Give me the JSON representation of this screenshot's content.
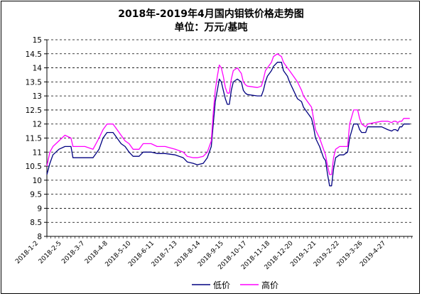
{
  "chart_data": {
    "type": "line",
    "title": "2018年-2019年4月国内钼铁价格走势图",
    "subtitle": "单位：万元/基吨",
    "ylim": [
      8,
      15
    ],
    "yticks": [
      "8",
      "8.5",
      "9",
      "9.5",
      "10",
      "10.5",
      "11",
      "11.5",
      "12",
      "12.5",
      "13",
      "13.5",
      "14",
      "14.5",
      "15"
    ],
    "xtick_labels": [
      "2018-1-2",
      "2018-2-5",
      "2018-3-7",
      "2018-4-8",
      "2018-5-10",
      "2018-6-11",
      "2018-7-13",
      "2018-8-14",
      "2018-9-15",
      "2018-10-17",
      "2018-11-18",
      "2018-12-20",
      "2019-1-21",
      "2019-2-22",
      "2019-3-26",
      "2019-4-27"
    ],
    "grid": true,
    "legend": "bottom",
    "series": [
      {
        "name": "低价",
        "color": "#000080",
        "points": [
          [
            0,
            10.2
          ],
          [
            3,
            10.6
          ],
          [
            6,
            10.9
          ],
          [
            12,
            11.1
          ],
          [
            18,
            11.2
          ],
          [
            24,
            11.2
          ],
          [
            26,
            10.8
          ],
          [
            38,
            10.8
          ],
          [
            46,
            10.8
          ],
          [
            52,
            11.1
          ],
          [
            56,
            11.5
          ],
          [
            60,
            11.7
          ],
          [
            66,
            11.7
          ],
          [
            70,
            11.5
          ],
          [
            74,
            11.3
          ],
          [
            78,
            11.2
          ],
          [
            82,
            11.0
          ],
          [
            86,
            10.85
          ],
          [
            92,
            10.85
          ],
          [
            96,
            11.0
          ],
          [
            104,
            11.0
          ],
          [
            110,
            10.95
          ],
          [
            118,
            10.95
          ],
          [
            128,
            10.9
          ],
          [
            136,
            10.8
          ],
          [
            140,
            10.65
          ],
          [
            146,
            10.6
          ],
          [
            150,
            10.55
          ],
          [
            156,
            10.6
          ],
          [
            160,
            10.8
          ],
          [
            164,
            11.2
          ],
          [
            166,
            12.0
          ],
          [
            168,
            12.8
          ],
          [
            170,
            13.2
          ],
          [
            172,
            13.6
          ],
          [
            174,
            13.5
          ],
          [
            176,
            13.2
          ],
          [
            178,
            12.9
          ],
          [
            180,
            12.7
          ],
          [
            182,
            12.7
          ],
          [
            184,
            13.2
          ],
          [
            186,
            13.5
          ],
          [
            190,
            13.6
          ],
          [
            194,
            13.5
          ],
          [
            196,
            13.2
          ],
          [
            198,
            13.1
          ],
          [
            200,
            13.05
          ],
          [
            210,
            13.0
          ],
          [
            214,
            13.0
          ],
          [
            216,
            13.2
          ],
          [
            218,
            13.5
          ],
          [
            220,
            13.7
          ],
          [
            224,
            13.9
          ],
          [
            226,
            14.05
          ],
          [
            230,
            14.2
          ],
          [
            234,
            14.2
          ],
          [
            236,
            13.9
          ],
          [
            240,
            13.7
          ],
          [
            242,
            13.5
          ],
          [
            246,
            13.2
          ],
          [
            250,
            12.9
          ],
          [
            254,
            12.8
          ],
          [
            256,
            12.6
          ],
          [
            260,
            12.4
          ],
          [
            264,
            12.2
          ],
          [
            266,
            11.9
          ],
          [
            268,
            11.5
          ],
          [
            272,
            11.2
          ],
          [
            274,
            11.0
          ],
          [
            276,
            10.8
          ],
          [
            278,
            10.7
          ],
          [
            280,
            10.2
          ],
          [
            282,
            9.8
          ],
          [
            284,
            9.8
          ],
          [
            286,
            10.4
          ],
          [
            288,
            10.8
          ],
          [
            292,
            10.9
          ],
          [
            296,
            10.9
          ],
          [
            300,
            11.0
          ],
          [
            302,
            11.5
          ],
          [
            306,
            12.0
          ],
          [
            310,
            12.0
          ],
          [
            312,
            11.8
          ],
          [
            314,
            11.7
          ],
          [
            318,
            11.7
          ],
          [
            320,
            11.9
          ],
          [
            334,
            11.9
          ],
          [
            340,
            11.8
          ],
          [
            344,
            11.75
          ],
          [
            346,
            11.8
          ],
          [
            348,
            11.8
          ],
          [
            350,
            11.75
          ],
          [
            352,
            11.9
          ],
          [
            354,
            11.9
          ],
          [
            356,
            12.0
          ],
          [
            362,
            12.0
          ]
        ]
      },
      {
        "name": "高价",
        "color": "#ff00ff",
        "points": [
          [
            0,
            10.5
          ],
          [
            3,
            11.0
          ],
          [
            6,
            11.2
          ],
          [
            12,
            11.4
          ],
          [
            18,
            11.6
          ],
          [
            24,
            11.5
          ],
          [
            26,
            11.2
          ],
          [
            38,
            11.2
          ],
          [
            46,
            11.1
          ],
          [
            52,
            11.5
          ],
          [
            56,
            11.8
          ],
          [
            60,
            12.0
          ],
          [
            66,
            12.0
          ],
          [
            70,
            11.8
          ],
          [
            74,
            11.6
          ],
          [
            78,
            11.4
          ],
          [
            82,
            11.3
          ],
          [
            86,
            11.1
          ],
          [
            92,
            11.1
          ],
          [
            96,
            11.3
          ],
          [
            104,
            11.3
          ],
          [
            110,
            11.2
          ],
          [
            118,
            11.2
          ],
          [
            128,
            11.1
          ],
          [
            136,
            11.0
          ],
          [
            140,
            10.85
          ],
          [
            146,
            10.8
          ],
          [
            150,
            10.8
          ],
          [
            156,
            10.85
          ],
          [
            160,
            11.0
          ],
          [
            164,
            11.4
          ],
          [
            166,
            12.4
          ],
          [
            168,
            13.2
          ],
          [
            170,
            13.7
          ],
          [
            172,
            14.1
          ],
          [
            174,
            14.0
          ],
          [
            176,
            13.7
          ],
          [
            178,
            13.3
          ],
          [
            180,
            13.1
          ],
          [
            182,
            13.1
          ],
          [
            184,
            13.6
          ],
          [
            186,
            13.9
          ],
          [
            190,
            14.0
          ],
          [
            194,
            13.8
          ],
          [
            196,
            13.5
          ],
          [
            198,
            13.4
          ],
          [
            200,
            13.35
          ],
          [
            210,
            13.3
          ],
          [
            214,
            13.35
          ],
          [
            216,
            13.6
          ],
          [
            218,
            13.9
          ],
          [
            220,
            14.0
          ],
          [
            224,
            14.2
          ],
          [
            226,
            14.4
          ],
          [
            230,
            14.5
          ],
          [
            234,
            14.4
          ],
          [
            236,
            14.2
          ],
          [
            240,
            14.0
          ],
          [
            242,
            13.9
          ],
          [
            246,
            13.7
          ],
          [
            250,
            13.5
          ],
          [
            254,
            13.2
          ],
          [
            256,
            13.0
          ],
          [
            260,
            12.8
          ],
          [
            264,
            12.6
          ],
          [
            266,
            12.2
          ],
          [
            268,
            11.8
          ],
          [
            272,
            11.5
          ],
          [
            274,
            11.3
          ],
          [
            276,
            11.1
          ],
          [
            278,
            10.9
          ],
          [
            280,
            10.5
          ],
          [
            282,
            10.2
          ],
          [
            284,
            10.2
          ],
          [
            286,
            10.8
          ],
          [
            288,
            11.1
          ],
          [
            292,
            11.2
          ],
          [
            296,
            11.2
          ],
          [
            300,
            11.2
          ],
          [
            302,
            12.0
          ],
          [
            306,
            12.5
          ],
          [
            310,
            12.5
          ],
          [
            312,
            12.2
          ],
          [
            314,
            12.0
          ],
          [
            318,
            11.9
          ],
          [
            320,
            12.0
          ],
          [
            334,
            12.1
          ],
          [
            340,
            12.1
          ],
          [
            344,
            12.05
          ],
          [
            346,
            12.1
          ],
          [
            348,
            12.1
          ],
          [
            350,
            12.05
          ],
          [
            352,
            12.1
          ],
          [
            354,
            12.1
          ],
          [
            356,
            12.2
          ],
          [
            362,
            12.2
          ]
        ]
      }
    ]
  }
}
